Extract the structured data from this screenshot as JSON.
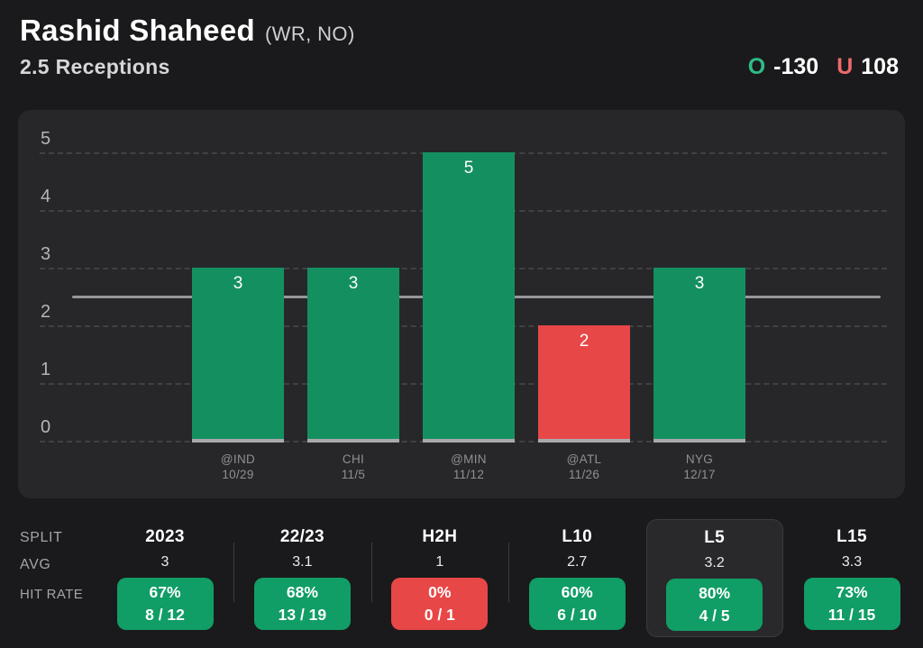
{
  "header": {
    "player_name": "Rashid Shaheed",
    "position_team": "(WR, NO)",
    "prop_label": "2.5 Receptions",
    "over": {
      "label": "O",
      "odds": "-130"
    },
    "under": {
      "label": "U",
      "odds": "108"
    }
  },
  "colors": {
    "page_bg": "#1a1a1c",
    "panel_bg": "#27272a",
    "bar_green": "#149060",
    "badge_green": "#119d66",
    "bar_red": "#e84747",
    "over_icon_green": "#2ebc85",
    "under_icon_red": "#ee6a6a",
    "prop_line_gray": "#97979b"
  },
  "chart_data": {
    "type": "bar",
    "categories": [
      "@IND",
      "CHI",
      "@MIN",
      "@ATL",
      "NYG"
    ],
    "dates": [
      "10/29",
      "11/5",
      "11/12",
      "11/26",
      "12/17"
    ],
    "values": [
      3,
      3,
      5,
      2,
      3
    ],
    "results": [
      "over",
      "over",
      "over",
      "under",
      "over"
    ],
    "reference_line": 2.5,
    "ylim": [
      0,
      5
    ],
    "yticks": [
      0,
      1,
      2,
      3,
      4,
      5
    ],
    "grid": "dashed-horizontal",
    "xlabel": "",
    "ylabel": ""
  },
  "table": {
    "row_labels": {
      "split": "SPLIT",
      "avg": "AVG",
      "hit_rate": "HIT RATE"
    },
    "columns": [
      {
        "split": "2023",
        "avg": "3",
        "hit_pct": "67%",
        "hit_frac": "8 / 12",
        "status": "over",
        "highlighted": false
      },
      {
        "split": "22/23",
        "avg": "3.1",
        "hit_pct": "68%",
        "hit_frac": "13 / 19",
        "status": "over",
        "highlighted": false
      },
      {
        "split": "H2H",
        "avg": "1",
        "hit_pct": "0%",
        "hit_frac": "0 / 1",
        "status": "under",
        "highlighted": false
      },
      {
        "split": "L10",
        "avg": "2.7",
        "hit_pct": "60%",
        "hit_frac": "6 / 10",
        "status": "over",
        "highlighted": false
      },
      {
        "split": "L5",
        "avg": "3.2",
        "hit_pct": "80%",
        "hit_frac": "4 / 5",
        "status": "over",
        "highlighted": true
      },
      {
        "split": "L15",
        "avg": "3.3",
        "hit_pct": "73%",
        "hit_frac": "11 / 15",
        "status": "over",
        "highlighted": false
      }
    ]
  }
}
